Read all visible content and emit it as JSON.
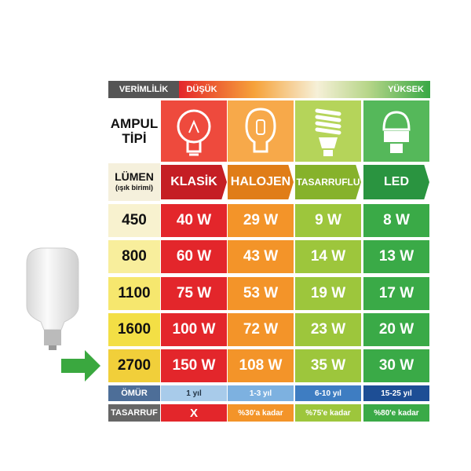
{
  "header": {
    "efficiency": "VERİMLİLİK",
    "low": "DÜŞÜK",
    "high": "YÜKSEK"
  },
  "type_label": "AMPUL TİPİ",
  "lumen_label": "LÜMEN",
  "lumen_unit": "(ışık birimi)",
  "columns": [
    "KLASİK",
    "HALOJEN",
    "TASARRUFLU",
    "LED"
  ],
  "rows": [
    {
      "lumen": 450,
      "watts": [
        "40 W",
        "29 W",
        "9 W",
        "8 W"
      ]
    },
    {
      "lumen": 800,
      "watts": [
        "60 W",
        "43 W",
        "14 W",
        "13 W"
      ]
    },
    {
      "lumen": 1100,
      "watts": [
        "75 W",
        "53 W",
        "19 W",
        "17 W"
      ]
    },
    {
      "lumen": 1600,
      "watts": [
        "100 W",
        "72 W",
        "23 W",
        "20 W"
      ]
    },
    {
      "lumen": 2700,
      "watts": [
        "150 W",
        "108 W",
        "35 W",
        "30 W"
      ]
    }
  ],
  "lifetime": {
    "label": "ÖMÜR",
    "values": [
      "1 yıl",
      "1-3 yıl",
      "6-10 yıl",
      "15-25 yıl"
    ]
  },
  "savings": {
    "label": "TASARRUF",
    "values": [
      "X",
      "%30'a kadar",
      "%75'e kadar",
      "%80'e kadar"
    ]
  }
}
